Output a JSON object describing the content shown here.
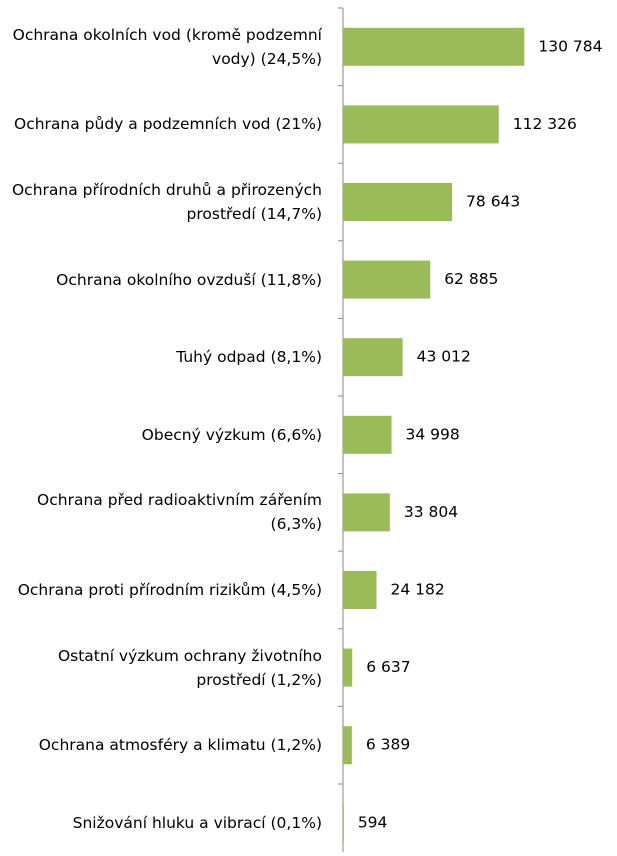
{
  "chart_data": {
    "type": "barh",
    "categories": [
      "Ochrana okolních vod (kromě podzemní vody) (24,5%)",
      "Ochrana půdy a podzemních vod (21%)",
      "Ochrana přírodních druhů a přirozených prostředí (14,7%)",
      "Ochrana okolního ovzduší (11,8%)",
      "Tuhý odpad (8,1%)",
      "Obecný výzkum (6,6%)",
      "Ochrana před radioaktivním zářením (6,3%)",
      "Ochrana proti přírodním rizikům (4,5%)",
      "Ostatní výzkum ochrany životního prostředí (1,2%)",
      "Ochrana atmosféry a klimatu (1,2%)",
      "Snižování hluku a vibrací  (0,1%)"
    ],
    "values": [
      130784,
      112326,
      78643,
      62885,
      43012,
      34998,
      33804,
      24182,
      6637,
      6389,
      594
    ],
    "value_labels": [
      "130 784",
      "112 326",
      "78 643",
      "62 885",
      "43 012",
      "34 998",
      "33 804",
      "24 182",
      "6 637",
      "6 389",
      "594"
    ],
    "color": "#9bbb59",
    "xlim": [
      0,
      150000
    ]
  }
}
